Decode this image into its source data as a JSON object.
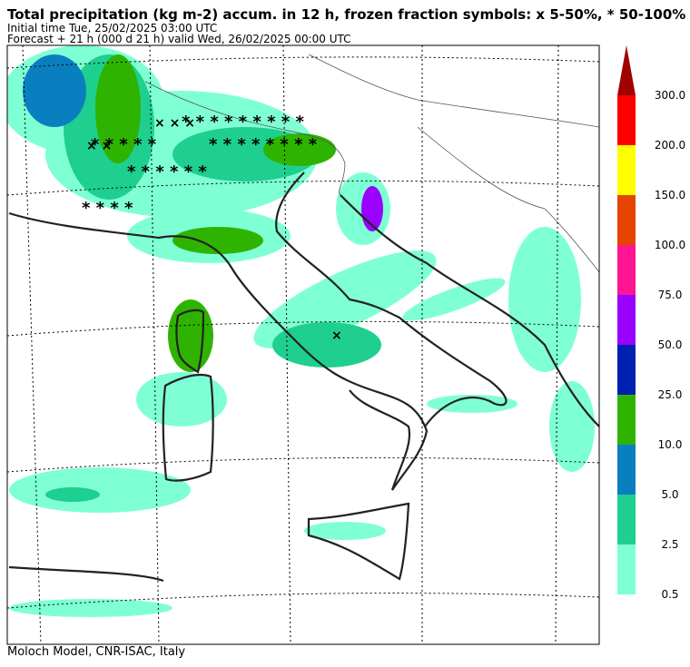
{
  "header": {
    "title": "Total precipitation (kg m-2) accum. in 12 h, frozen fraction symbols: x 5-50%, * 50-100%",
    "initial_time": "Initial time  Tue, 25/02/2025  03:00 UTC",
    "forecast": "Forecast  +  21 h  (000 d 21 h)  valid Wed, 26/02/2025 00:00 UTC"
  },
  "colorbar": {
    "labels": [
      "0.5",
      "2.5",
      "5.0",
      "10.0",
      "25.0",
      "50.0",
      "75.0",
      "100.0",
      "150.0",
      "200.0",
      "300.0"
    ],
    "colors": [
      "#7fffd4",
      "#1ecf8f",
      "#0a7fbf",
      "#2eb400",
      "#0020b0",
      "#9a00ff",
      "#ff1493",
      "#e54500",
      "#ffff00",
      "#ff0000",
      "#a00000"
    ]
  },
  "footer": "Moloch Model, CNR-ISAC, Italy"
}
